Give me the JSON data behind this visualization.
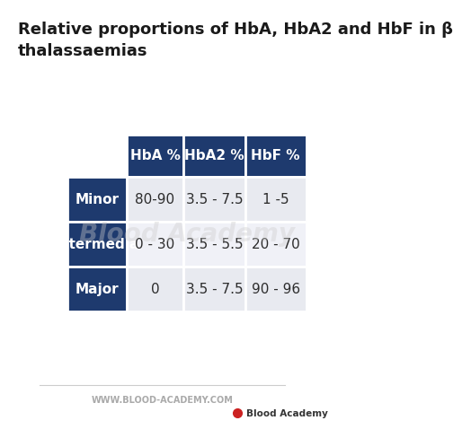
{
  "title_line1": "Relative proportions of HbA, HbA2 and HbF in β",
  "title_line2": "thalassaemias",
  "col_headers": [
    "HbA %",
    "HbA2 %",
    "HbF %"
  ],
  "row_headers": [
    "Minor",
    "Intermedia",
    "Major"
  ],
  "cell_data": [
    [
      "80-90",
      "3.5 - 7.5",
      "1 -5"
    ],
    [
      "0 - 30",
      "3.5 - 5.5",
      "20 - 70"
    ],
    [
      "0",
      "3.5 - 7.5",
      "90 - 96"
    ]
  ],
  "header_bg": "#1e3a6e",
  "header_text": "#ffffff",
  "row_header_bg": "#1e3a6e",
  "row_header_text": "#ffffff",
  "cell_bg_odd": "#e8eaf0",
  "cell_bg_even": "#f0f1f7",
  "cell_text": "#2c2c2c",
  "bg_color": "#ffffff",
  "watermark_text": "Blood Academy",
  "watermark_color": "#cccccc",
  "url_text": "WWW.BLOOD-ACADEMY.COM",
  "url_color": "#aaaaaa",
  "title_color": "#1a1a1a",
  "title_fontsize": 13,
  "header_fontsize": 11,
  "cell_fontsize": 11,
  "row_header_fontsize": 11,
  "logo_text": "Blood Academy",
  "logo_color": "#333333",
  "drop_color": "#cc2222"
}
